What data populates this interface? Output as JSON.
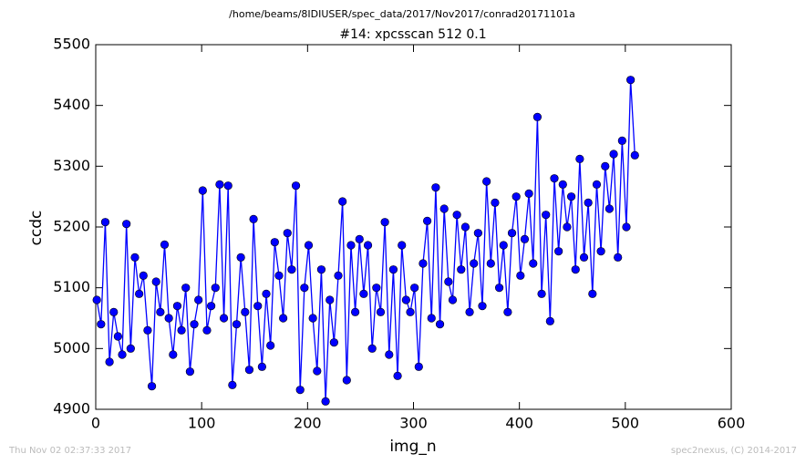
{
  "chart_data": {
    "type": "line",
    "suptitle": "/home/beams/8IDIUSER/spec_data/2017/Nov2017/conrad20171101a",
    "title": "#14: xpcsscan 512 0.1",
    "xlabel": "img_n",
    "ylabel": "ccdc",
    "footer_left": "Thu Nov 02 02:37:33 2017",
    "footer_right": "spec2nexus, (C) 2014-2017",
    "xlim": [
      0,
      600
    ],
    "xticks": [
      0,
      100,
      200,
      300,
      400,
      500,
      600
    ],
    "ylim": [
      4900,
      5500
    ],
    "yticks": [
      4900,
      5000,
      5100,
      5200,
      5300,
      5400,
      5500
    ],
    "x": [
      1,
      5,
      9,
      13,
      17,
      21,
      25,
      29,
      33,
      37,
      41,
      45,
      49,
      53,
      57,
      61,
      65,
      69,
      73,
      77,
      81,
      85,
      89,
      93,
      97,
      101,
      105,
      109,
      113,
      117,
      121,
      125,
      129,
      133,
      137,
      141,
      145,
      149,
      153,
      157,
      161,
      165,
      169,
      173,
      177,
      181,
      185,
      189,
      193,
      197,
      201,
      205,
      209,
      213,
      217,
      221,
      225,
      229,
      233,
      237,
      241,
      245,
      249,
      253,
      257,
      261,
      265,
      269,
      273,
      277,
      281,
      285,
      289,
      293,
      297,
      301,
      305,
      309,
      313,
      317,
      321,
      325,
      329,
      333,
      337,
      341,
      345,
      349,
      353,
      357,
      361,
      365,
      369,
      373,
      377,
      381,
      385,
      389,
      393,
      397,
      401,
      405,
      409,
      413,
      417,
      421,
      425,
      429,
      433,
      437,
      441,
      445,
      449,
      453,
      457,
      461,
      465,
      469,
      473,
      477,
      481,
      485,
      489,
      493,
      497,
      501,
      505,
      509
    ],
    "series": [
      {
        "name": "ccdc",
        "color": "#0000ff",
        "values": [
          5080,
          5040,
          5208,
          4978,
          5060,
          5020,
          4990,
          5205,
          5000,
          5150,
          5090,
          5120,
          5030,
          4938,
          5110,
          5060,
          5171,
          5050,
          4990,
          5070,
          5030,
          5100,
          4962,
          5040,
          5080,
          5260,
          5030,
          5070,
          5100,
          5270,
          5050,
          5268,
          4940,
          5040,
          5150,
          5060,
          4965,
          5213,
          5070,
          4970,
          5090,
          5005,
          5175,
          5120,
          5050,
          5190,
          5130,
          5268,
          4932,
          5100,
          5170,
          5050,
          4963,
          5130,
          4913,
          5080,
          5010,
          5120,
          5242,
          4948,
          5170,
          5060,
          5180,
          5090,
          5170,
          5000,
          5100,
          5060,
          5208,
          4990,
          5130,
          4955,
          5170,
          5080,
          5060,
          5100,
          4970,
          5140,
          5210,
          5050,
          5265,
          5040,
          5230,
          5110,
          5080,
          5220,
          5130,
          5200,
          5060,
          5140,
          5190,
          5070,
          5275,
          5140,
          5240,
          5100,
          5170,
          5060,
          5190,
          5250,
          5120,
          5180,
          5255,
          5140,
          5381,
          5090,
          5220,
          5045,
          5280,
          5160,
          5270,
          5200,
          5250,
          5130,
          5312,
          5150,
          5240,
          5090,
          5270,
          5160,
          5300,
          5230,
          5320,
          5150,
          5342,
          5200,
          5442,
          5318
        ]
      }
    ]
  }
}
